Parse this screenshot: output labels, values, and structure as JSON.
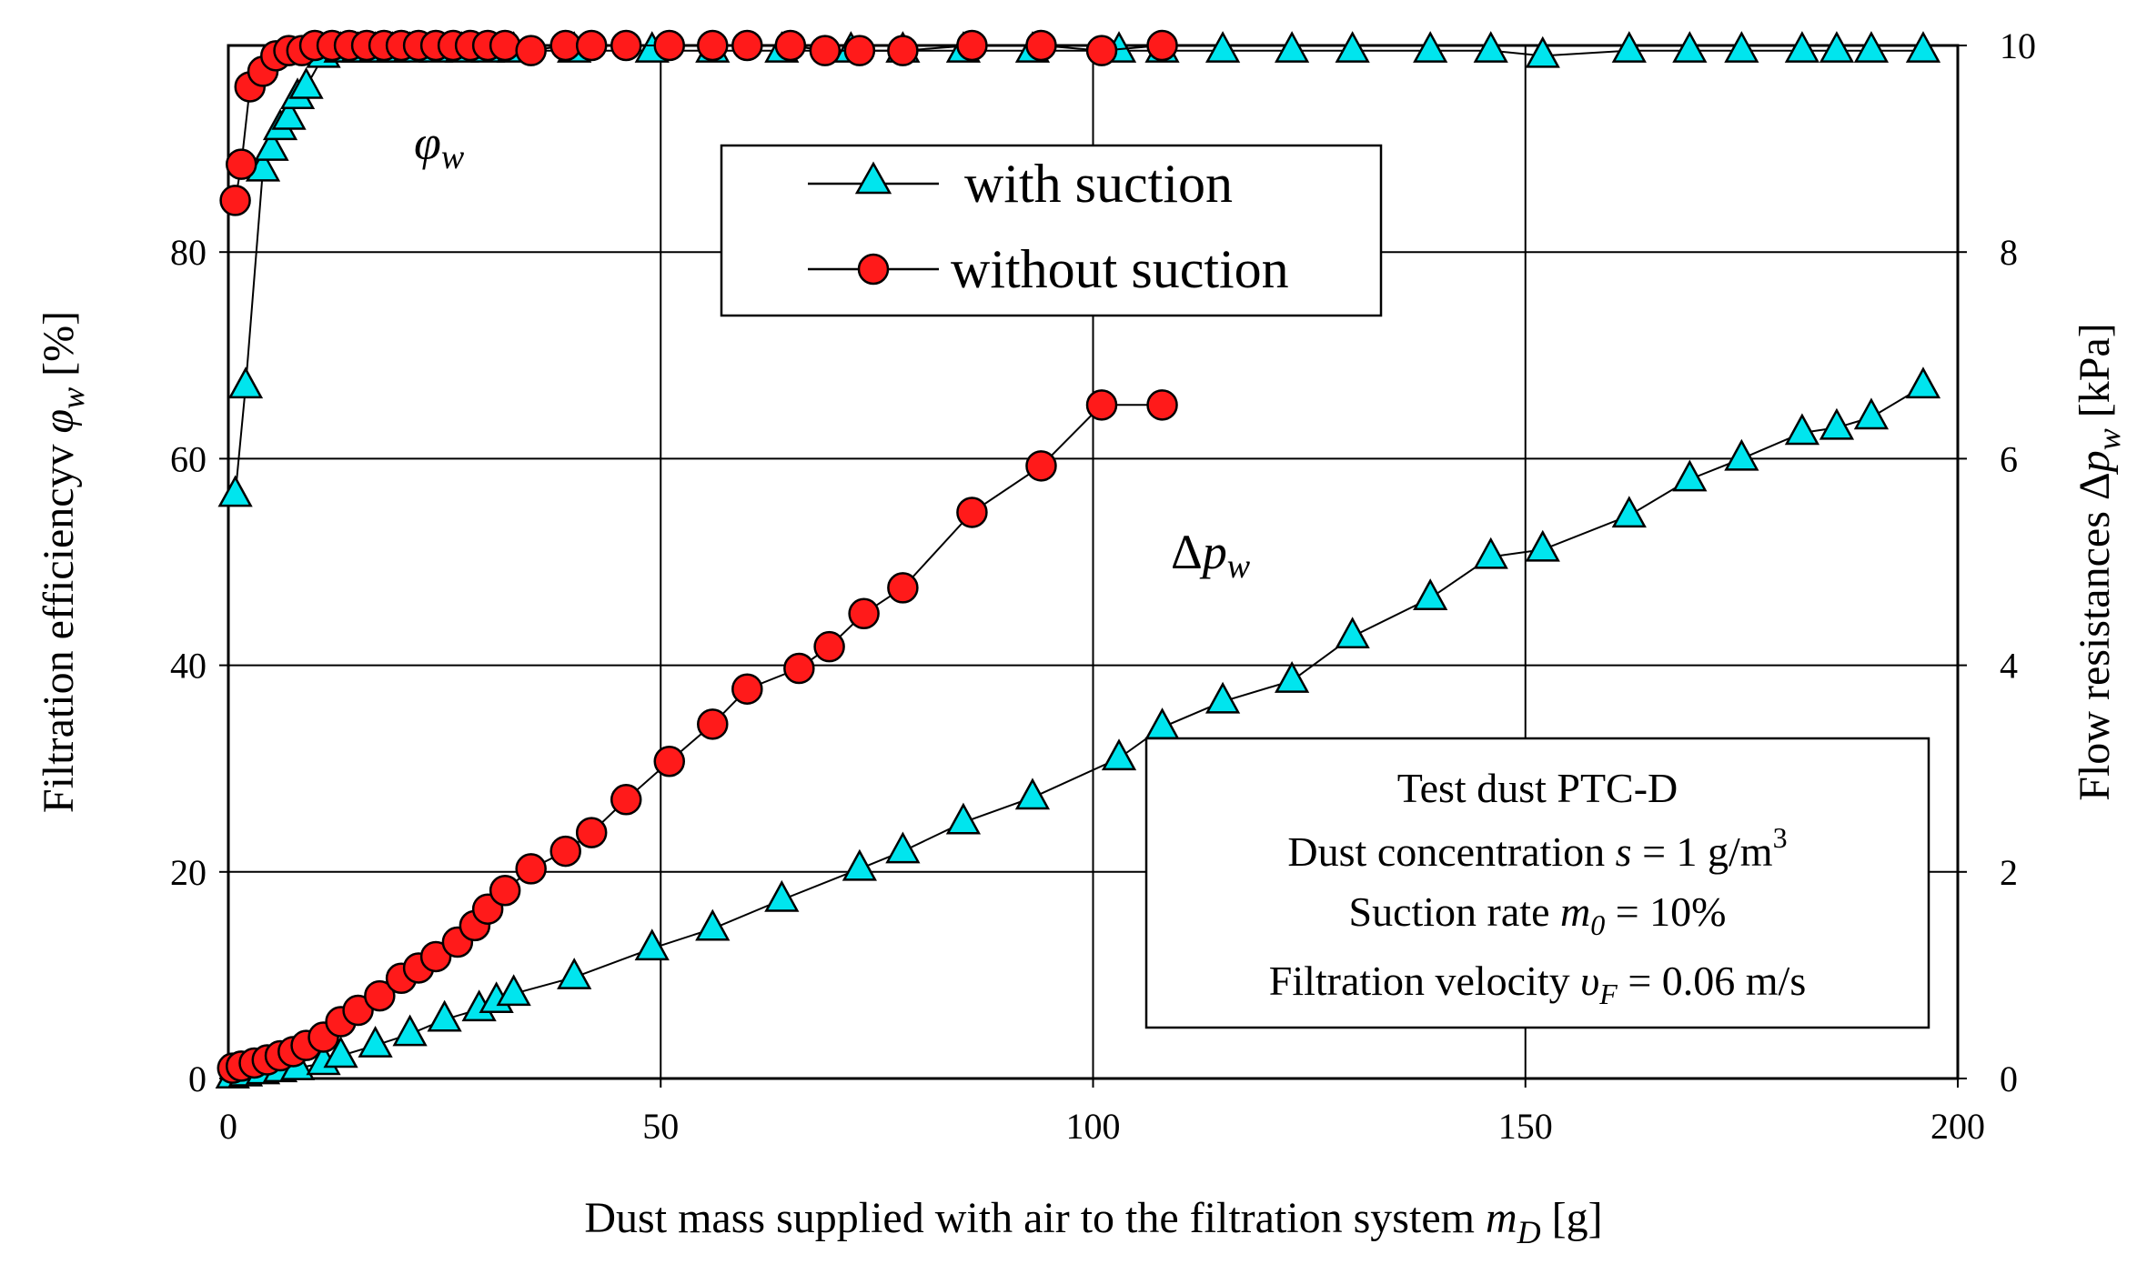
{
  "chart_data": {
    "type": "scatter",
    "xlabel_main": "Dust mass supplied with air to the filtration system ",
    "xlabel_var": "m",
    "xlabel_sub": "D",
    "xlabel_unit": " [g]",
    "ylabel_left_main": "Filtration efficiencyv ",
    "ylabel_left_var": "φ",
    "ylabel_left_sub": "w",
    "ylabel_left_unit": " [%]",
    "ylabel_right_main": "Flow resistances Δ",
    "ylabel_right_var": "p",
    "ylabel_right_sub": "w",
    "ylabel_right_unit": " [kPa]",
    "xlim": [
      0,
      200
    ],
    "ylim_left": [
      0,
      100
    ],
    "ylim_right": [
      0,
      10
    ],
    "xticks": [
      "0",
      "50",
      "100",
      "150",
      "200"
    ],
    "yticks_left": [
      "0",
      "20",
      "40",
      "60",
      "80"
    ],
    "yticks_right": [
      "0",
      "2",
      "4",
      "6",
      "8",
      "10"
    ],
    "grid": true,
    "annotation_phi": "φ",
    "annotation_phi_sub": "w",
    "annotation_dp_delta": "Δ",
    "annotation_dp_var": "p",
    "annotation_dp_sub": "w",
    "legend": {
      "position": "top-center",
      "entries": [
        "with suction",
        "without suction"
      ]
    },
    "info_box": {
      "line1": "Test dust PTC-D",
      "line2_pre": "Dust concentration ",
      "line2_var": "s",
      "line2_post": " = 1 g/m",
      "line2_sup": "3",
      "line3_pre": "Suction rate ",
      "line3_var": "m",
      "line3_sub": "0",
      "line3_post": " = 10%",
      "line4_pre": "Filtration velocity ",
      "line4_var": "υ",
      "line4_sub": "F",
      "line4_post": " = 0.06 m/s"
    },
    "colors": {
      "with_suction_fill": "#00e5ee",
      "without_suction_fill": "#ff1a1a",
      "line": "#000000"
    },
    "series": [
      {
        "name": "with suction",
        "axis": "left",
        "quantity": "efficiency",
        "marker": "triangle",
        "x": [
          0.8,
          2,
          4,
          5,
          6,
          7,
          8,
          9,
          11,
          13,
          15,
          17,
          19,
          21,
          24,
          27,
          30,
          33,
          40,
          49,
          56,
          64,
          72,
          78,
          85,
          93,
          103,
          108,
          115,
          123,
          130,
          139,
          146,
          152,
          162,
          169,
          175,
          182,
          186,
          190,
          196
        ],
        "y": [
          56.5,
          67,
          88,
          90,
          92,
          93,
          95,
          96,
          99,
          99.5,
          99.5,
          99.5,
          99.5,
          99.5,
          99.5,
          99.5,
          99.5,
          99.5,
          99.5,
          99.5,
          99.5,
          99.5,
          99.5,
          99.5,
          99.5,
          99.5,
          99.5,
          99.5,
          99.5,
          99.5,
          99.5,
          99.5,
          99.5,
          99,
          99.5,
          99.5,
          99.5,
          99.5,
          99.5,
          99.5,
          99.5
        ]
      },
      {
        "name": "without suction",
        "axis": "left",
        "quantity": "efficiency",
        "marker": "circle",
        "x": [
          0.8,
          1.5,
          2.5,
          4,
          5.5,
          7,
          8.5,
          10,
          12,
          14,
          16,
          18,
          20,
          22,
          24,
          26,
          28,
          30,
          32,
          35,
          39,
          42,
          46,
          51,
          56,
          60,
          65,
          69,
          73,
          78,
          86,
          94,
          101,
          108
        ],
        "y": [
          85,
          88.5,
          96,
          97.5,
          99,
          99.5,
          99.5,
          100,
          100,
          100,
          100,
          100,
          100,
          100,
          100,
          100,
          100,
          100,
          100,
          99.5,
          100,
          100,
          100,
          100,
          100,
          100,
          100,
          99.5,
          99.5,
          99.5,
          100,
          100,
          99.5,
          100
        ]
      },
      {
        "name": "with suction",
        "axis": "right",
        "quantity": "flow resistance",
        "marker": "triangle",
        "x": [
          0.5,
          2,
          4,
          6,
          8,
          11,
          13,
          17,
          21,
          25,
          29,
          31,
          33,
          40,
          49,
          56,
          64,
          73,
          78,
          85,
          93,
          103,
          108,
          115,
          123,
          130,
          139,
          146,
          152,
          162,
          169,
          175,
          182,
          186,
          190,
          196
        ],
        "y": [
          0.02,
          0.04,
          0.06,
          0.08,
          0.1,
          0.15,
          0.22,
          0.32,
          0.43,
          0.57,
          0.67,
          0.75,
          0.82,
          0.98,
          1.26,
          1.45,
          1.73,
          2.03,
          2.2,
          2.48,
          2.72,
          3.1,
          3.4,
          3.65,
          3.85,
          4.28,
          4.65,
          5.05,
          5.12,
          5.45,
          5.8,
          6.0,
          6.25,
          6.3,
          6.4,
          6.7
        ]
      },
      {
        "name": "without suction",
        "axis": "right",
        "quantity": "flow resistance",
        "marker": "circle",
        "x": [
          0.5,
          1.5,
          3,
          4.5,
          6,
          7.5,
          9,
          11,
          13,
          15,
          17.5,
          20,
          22,
          24,
          26.5,
          28.5,
          30,
          32,
          35,
          39,
          42,
          46,
          51,
          56,
          60,
          66,
          69.5,
          73.5,
          78,
          86,
          94,
          101,
          108
        ],
        "y": [
          0.1,
          0.12,
          0.15,
          0.18,
          0.22,
          0.26,
          0.32,
          0.4,
          0.55,
          0.66,
          0.8,
          0.97,
          1.07,
          1.18,
          1.32,
          1.48,
          1.64,
          1.82,
          2.03,
          2.2,
          2.38,
          2.7,
          3.07,
          3.43,
          3.77,
          3.97,
          4.18,
          4.5,
          4.75,
          5.48,
          5.93,
          6.52,
          6.52
        ]
      }
    ]
  }
}
